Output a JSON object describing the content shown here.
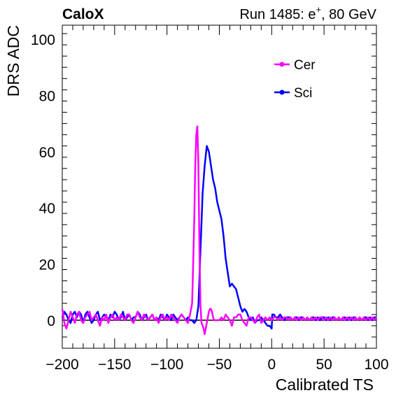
{
  "header": {
    "experiment": "CaloX",
    "run_prefix": "Run 1485: e",
    "run_charge": "+",
    "run_suffix": ", 80 GeV"
  },
  "colors": {
    "cer": "#ff00ff",
    "sci": "#0000ff",
    "axis": "#000000",
    "baseline": "#000000"
  },
  "chart_data": {
    "type": "line",
    "xlabel": "Calibrated TS",
    "ylabel": "DRS ADC",
    "xlim": [
      -200,
      100
    ],
    "ylim": [
      -10,
      105
    ],
    "x_ticks": [
      -200,
      -150,
      -100,
      -50,
      0,
      50,
      100
    ],
    "x_tick_labels": [
      "−200",
      "−150",
      "−100",
      "−50",
      "0",
      "50",
      "100"
    ],
    "y_ticks": [
      0,
      20,
      40,
      60,
      80,
      100
    ],
    "y_tick_labels": [
      "0",
      "20",
      "40",
      "60",
      "80",
      "100"
    ],
    "grid": false,
    "legend_position": "top-right",
    "baseline_y": 0,
    "series": [
      {
        "name": "Cer",
        "color": "#ff00ff",
        "x": [
          -200,
          -198,
          -196,
          -194,
          -192,
          -190,
          -188,
          -186,
          -184,
          -182,
          -180,
          -178,
          -176,
          -174,
          -172,
          -170,
          -168,
          -166,
          -164,
          -162,
          -160,
          -158,
          -156,
          -154,
          -152,
          -150,
          -148,
          -146,
          -144,
          -142,
          -140,
          -138,
          -136,
          -134,
          -132,
          -130,
          -128,
          -126,
          -124,
          -122,
          -120,
          -118,
          -116,
          -114,
          -112,
          -110,
          -108,
          -106,
          -104,
          -102,
          -100,
          -98,
          -96,
          -94,
          -92,
          -90,
          -88,
          -86,
          -84,
          -82,
          -80,
          -78,
          -76,
          -75,
          -74,
          -73,
          -72,
          -71,
          -70,
          -69,
          -68,
          -67,
          -66,
          -65,
          -64,
          -63,
          -62,
          -61,
          -60,
          -59,
          -58,
          -57,
          -56,
          -55,
          -54,
          -52,
          -50,
          -48,
          -46,
          -44,
          -42,
          -40,
          -38,
          -36,
          -34,
          -32,
          -30,
          -28,
          -26,
          -24,
          -22,
          -20,
          -18,
          -16,
          -14,
          -12,
          -10,
          -8,
          -6,
          -4,
          -2,
          0,
          2,
          4,
          6,
          8,
          10,
          12,
          14,
          16,
          18,
          20,
          22,
          24,
          26,
          28,
          30,
          32,
          34,
          36,
          38,
          40,
          42,
          44,
          46,
          48,
          50,
          52,
          54,
          56,
          58,
          60,
          62,
          64,
          66,
          68,
          70,
          72,
          74,
          76,
          78,
          80,
          82,
          84,
          86,
          88,
          90,
          92,
          94,
          96,
          98,
          100
        ],
        "y": [
          4,
          -1,
          -3,
          0,
          3,
          1,
          -1,
          2,
          3,
          0,
          -1,
          1,
          2,
          3,
          0,
          1,
          2,
          0,
          -2,
          1,
          0,
          2,
          -1,
          1,
          2,
          0,
          1,
          0,
          2,
          1,
          0,
          2,
          2,
          0,
          -1,
          1,
          3,
          1,
          0,
          2,
          1,
          0,
          1,
          2,
          0,
          1,
          -1,
          1,
          2,
          0,
          1,
          0,
          2,
          1,
          0,
          -1,
          1,
          2,
          1,
          0,
          -1,
          2,
          6,
          20,
          35,
          55,
          66,
          69,
          55,
          25,
          5,
          -1,
          -2,
          -3,
          -5,
          -3,
          -1,
          1,
          3,
          4,
          4,
          3,
          1,
          0,
          0,
          0,
          0,
          1,
          0,
          2,
          1,
          0,
          -2,
          1,
          1,
          2,
          2,
          0,
          -1,
          -2,
          1,
          1,
          0,
          -1,
          1,
          2,
          -1,
          0,
          1,
          0,
          1,
          0,
          1,
          1,
          0,
          1,
          0,
          1,
          1,
          0,
          1,
          0,
          1,
          0,
          1,
          0,
          1,
          0,
          1,
          0,
          1,
          0,
          1,
          0,
          1,
          1,
          0,
          1,
          0,
          1,
          0,
          1,
          0,
          1,
          0,
          1,
          0,
          1,
          0,
          1,
          0,
          1,
          0,
          1,
          0,
          1,
          0,
          1,
          0,
          1,
          0,
          1
        ]
      },
      {
        "name": "Sci",
        "color": "#0000ff",
        "x": [
          -200,
          -198,
          -196,
          -194,
          -192,
          -190,
          -188,
          -186,
          -184,
          -182,
          -180,
          -178,
          -176,
          -174,
          -172,
          -170,
          -168,
          -166,
          -164,
          -162,
          -160,
          -158,
          -156,
          -154,
          -152,
          -150,
          -148,
          -146,
          -144,
          -142,
          -140,
          -138,
          -136,
          -134,
          -132,
          -130,
          -128,
          -126,
          -124,
          -122,
          -120,
          -118,
          -116,
          -114,
          -112,
          -110,
          -108,
          -106,
          -104,
          -102,
          -100,
          -98,
          -96,
          -94,
          -92,
          -90,
          -88,
          -86,
          -84,
          -82,
          -80,
          -78,
          -76,
          -74,
          -72,
          -70,
          -68,
          -66,
          -64,
          -62,
          -60,
          -58,
          -56,
          -54,
          -52,
          -50,
          -48,
          -46,
          -44,
          -42,
          -40,
          -38,
          -36,
          -34,
          -32,
          -30,
          -28,
          -26,
          -24,
          -22,
          -20,
          -18,
          -16,
          -14,
          -12,
          -10,
          -8,
          -6,
          -4,
          -2,
          0,
          0.5,
          2,
          4,
          6,
          8,
          10,
          12,
          14,
          16,
          18,
          20,
          22,
          24,
          26,
          28,
          30,
          32,
          34,
          36,
          38,
          40,
          42,
          44,
          46,
          48,
          50,
          52,
          54,
          56,
          58,
          60,
          62,
          64,
          66,
          68,
          70,
          72,
          74,
          76,
          78,
          80,
          82,
          84,
          86,
          88,
          90,
          92,
          94,
          96,
          98,
          100
        ],
        "y": [
          1,
          3,
          2,
          0,
          -1,
          2,
          3,
          1,
          3,
          2,
          -1,
          2,
          3,
          1,
          -1,
          0,
          2,
          3,
          0,
          1,
          2,
          1,
          0,
          2,
          1,
          3,
          2,
          0,
          1,
          3,
          0,
          1,
          2,
          0,
          1,
          1,
          3,
          2,
          0,
          1,
          2,
          0,
          1,
          2,
          0,
          1,
          0,
          2,
          1,
          0,
          2,
          1,
          0,
          2,
          1,
          0,
          1,
          2,
          1,
          0,
          1,
          0,
          0,
          -1,
          0,
          5,
          25,
          45,
          55,
          62,
          60,
          55,
          50,
          47,
          42,
          39,
          36,
          30,
          22,
          17,
          12,
          13,
          12,
          11,
          8,
          5,
          3,
          4,
          3,
          1,
          0,
          1,
          -1,
          0,
          0,
          1,
          0,
          -1,
          -2,
          -2,
          -3,
          2,
          2,
          1,
          1,
          2,
          1,
          0,
          1,
          1,
          1,
          0,
          1,
          1,
          0,
          1,
          1,
          0,
          1,
          0,
          1,
          1,
          0,
          1,
          0,
          1,
          1,
          0,
          1,
          0,
          1,
          1,
          0,
          1,
          0,
          1,
          1,
          0,
          1,
          0,
          1,
          1,
          0,
          1,
          0,
          1,
          1,
          0,
          1,
          0,
          1,
          1
        ]
      }
    ]
  }
}
